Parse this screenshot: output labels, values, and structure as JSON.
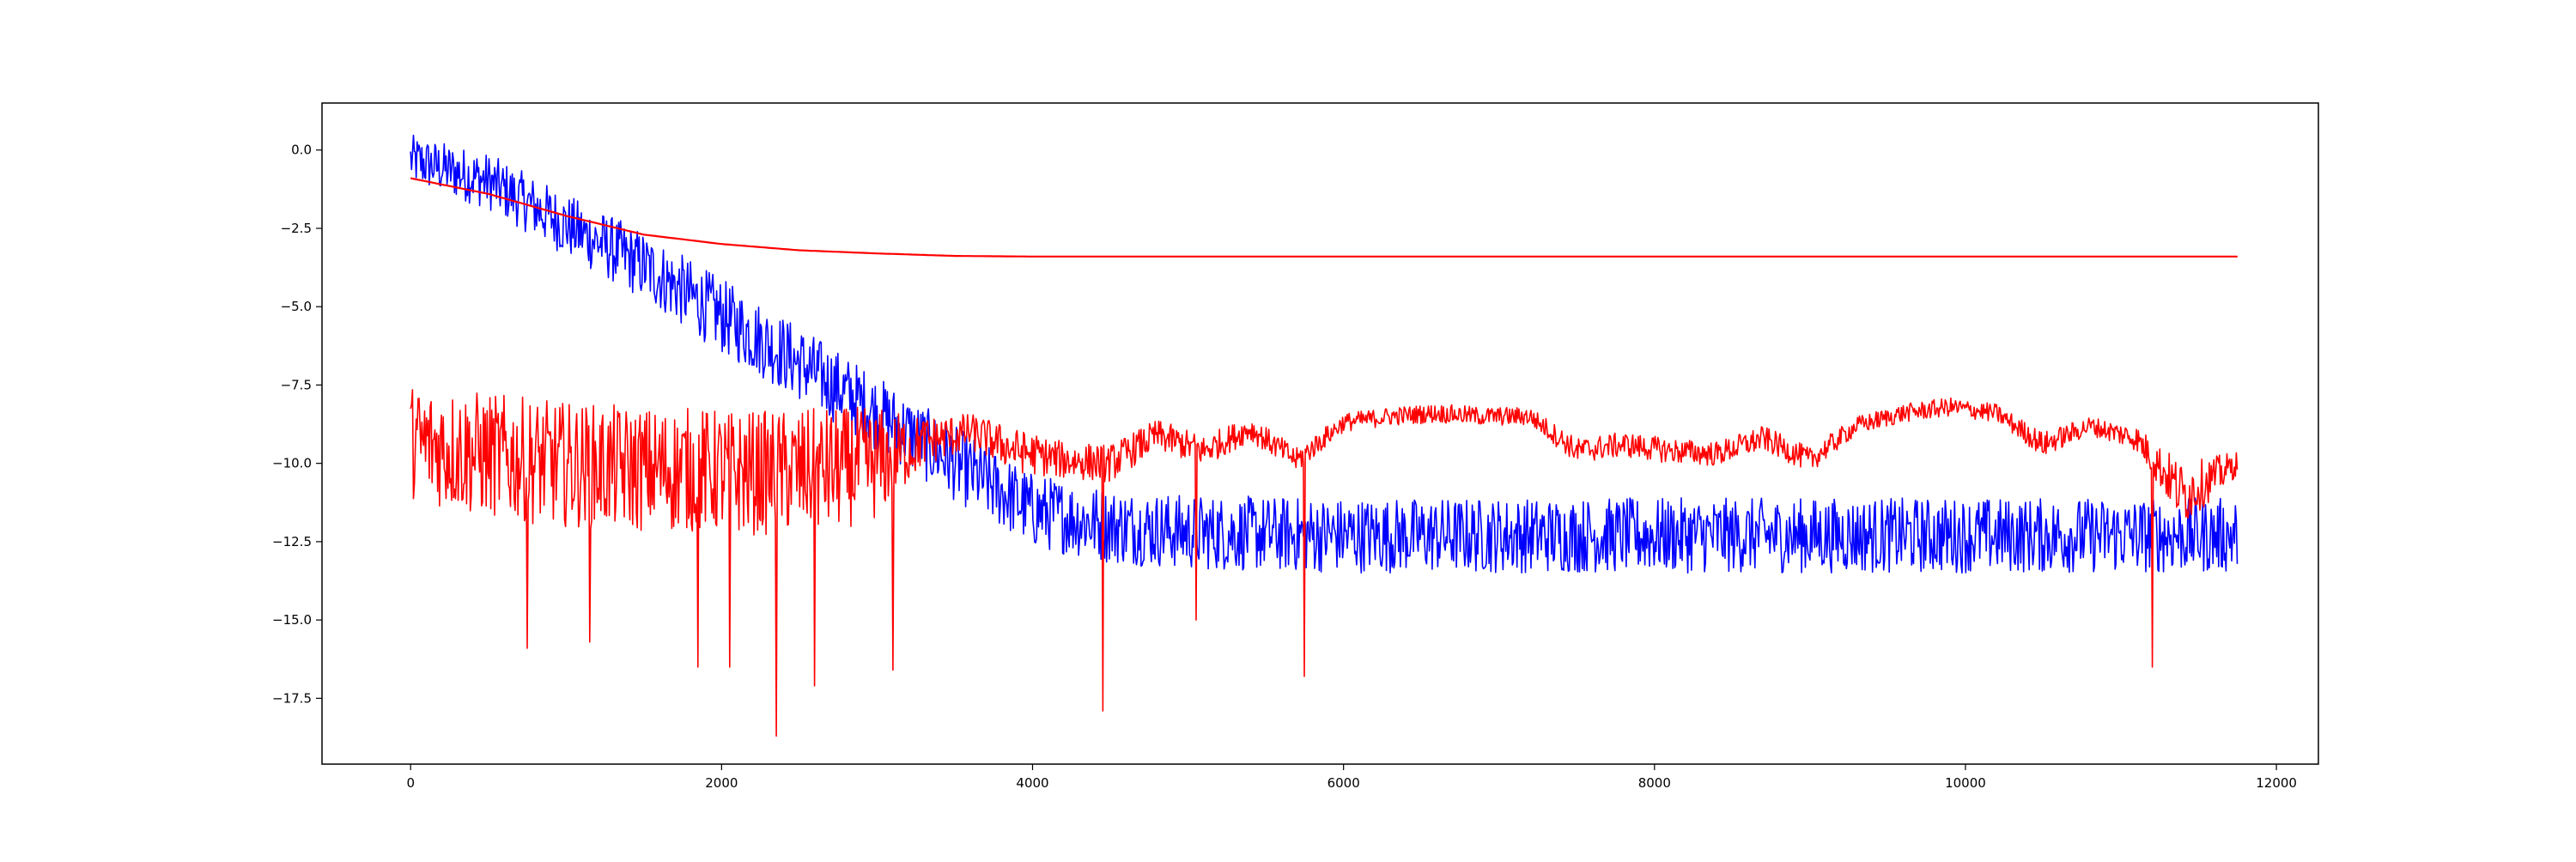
{
  "chart_data": {
    "type": "line",
    "title": "",
    "xlabel": "",
    "ylabel": "",
    "xlim": [
      -570,
      12270
    ],
    "ylim": [
      -19.6,
      1.5
    ],
    "x_ticks": [
      0,
      2000,
      4000,
      6000,
      8000,
      10000,
      12000
    ],
    "x_tick_labels": [
      "0",
      "2000",
      "4000",
      "6000",
      "8000",
      "10000",
      "12000"
    ],
    "y_ticks": [
      0.0,
      -2.5,
      -5.0,
      -7.5,
      -10.0,
      -12.5,
      -15.0,
      -17.5
    ],
    "y_tick_labels": [
      "0.0",
      "−2.5",
      "−5.0",
      "−7.5",
      "−10.0",
      "−12.5",
      "−15.0",
      "−17.5"
    ],
    "grid": false,
    "legend": "none",
    "series": [
      {
        "color": "#0000ff",
        "description_kind": "noisy",
        "x": [
          0,
          500,
          1000,
          1500,
          2000,
          2500,
          3000,
          3500,
          4000,
          4500,
          5000,
          6000,
          7000,
          8000,
          9000,
          10000,
          11000,
          11750
        ],
        "y": [
          -0.3,
          -1.0,
          -2.4,
          -3.7,
          -5.3,
          -6.8,
          -8.4,
          -10.0,
          -11.5,
          -12.0,
          -12.2,
          -12.3,
          -12.3,
          -12.3,
          -12.3,
          -12.3,
          -12.3,
          -12.3
        ],
        "spread": [
          0.8,
          0.9,
          1.0,
          1.1,
          1.2,
          1.2,
          1.2,
          1.2,
          1.2,
          1.2,
          1.2,
          1.2,
          1.2,
          1.2,
          1.2,
          1.2,
          1.2,
          1.2
        ]
      },
      {
        "color": "#ff0000",
        "description_kind": "smooth",
        "x": [
          0,
          500,
          1000,
          1500,
          2000,
          2500,
          3000,
          3500,
          4000,
          5000,
          6000,
          8000,
          10000,
          11750
        ],
        "y": [
          -0.9,
          -1.4,
          -2.1,
          -2.7,
          -3.0,
          -3.2,
          -3.3,
          -3.38,
          -3.4,
          -3.4,
          -3.4,
          -3.4,
          -3.4,
          -3.4
        ]
      },
      {
        "color": "#ff0000",
        "description_kind": "noisy-envelope",
        "x": [
          0,
          300,
          600,
          900,
          1200,
          1500,
          1800,
          2100,
          2400,
          2700,
          3000,
          3300,
          3600,
          3900,
          4200,
          4500,
          4800,
          5100,
          5400,
          5700,
          6000,
          6300,
          6600,
          6900,
          7200,
          7500,
          7800,
          8100,
          8400,
          8700,
          9000,
          9300,
          9600,
          9900,
          10200,
          10500,
          10800,
          11100,
          11400,
          11750
        ],
        "y": [
          -9.3,
          -9.6,
          -9.8,
          -10.0,
          -10.1,
          -10.2,
          -10.2,
          -10.3,
          -10.3,
          -10.2,
          -10.0,
          -9.3,
          -9.0,
          -9.6,
          -9.9,
          -10.0,
          -9.1,
          -9.6,
          -8.9,
          -9.9,
          -8.7,
          -8.5,
          -8.4,
          -8.5,
          -8.5,
          -9.6,
          -9.4,
          -9.6,
          -9.7,
          -9.2,
          -9.9,
          -8.8,
          -8.4,
          -8.2,
          -8.4,
          -9.4,
          -8.8,
          -9.2,
          -11.0,
          -10.0
        ],
        "spread": [
          1.8,
          2.0,
          2.0,
          2.0,
          2.0,
          2.0,
          2.0,
          2.0,
          2.0,
          2.0,
          1.8,
          0.8,
          0.6,
          0.7,
          0.6,
          0.6,
          0.5,
          0.5,
          0.4,
          0.4,
          0.3,
          0.3,
          0.3,
          0.3,
          0.3,
          0.4,
          0.4,
          0.4,
          0.4,
          0.4,
          0.4,
          0.3,
          0.3,
          0.3,
          0.3,
          0.4,
          0.3,
          0.4,
          1.0,
          0.4
        ],
        "spikes": [
          [
            750,
            -15.9
          ],
          [
            1150,
            -15.7
          ],
          [
            1850,
            -16.5
          ],
          [
            2050,
            -16.5
          ],
          [
            2350,
            -18.7
          ],
          [
            2600,
            -17.1
          ],
          [
            3100,
            -16.6
          ],
          [
            4450,
            -17.9
          ],
          [
            5050,
            -15.0
          ],
          [
            5750,
            -16.8
          ],
          [
            11200,
            -16.5
          ]
        ]
      }
    ]
  }
}
